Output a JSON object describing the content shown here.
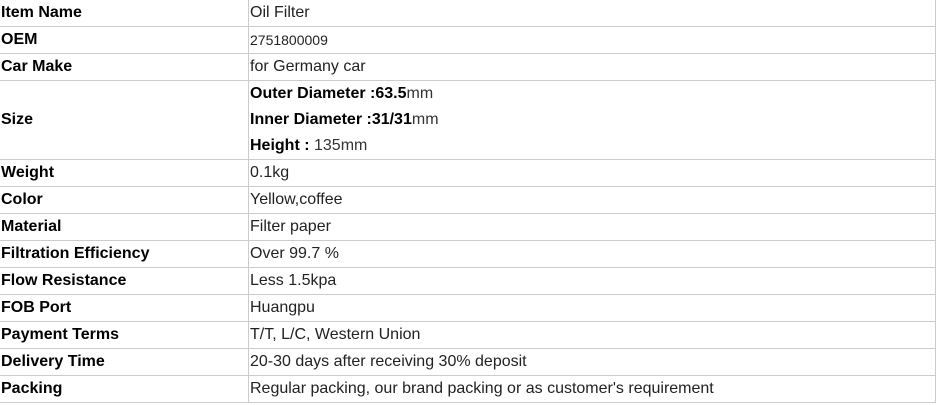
{
  "rows": [
    {
      "label": "Item Name",
      "value": "Oil Filter"
    },
    {
      "label": "OEM",
      "value": "2751800009"
    },
    {
      "label": "Car Make",
      "value": "for Germany car"
    },
    {
      "label": "Size",
      "lines": [
        {
          "bold": "Outer Diameter :63.5",
          "rest": "mm"
        },
        {
          "bold": "Inner Diameter :31/31",
          "rest": "mm"
        },
        {
          "bold": "Height : ",
          "rest": "135mm"
        }
      ]
    },
    {
      "label": "Weight",
      "value": "0.1kg"
    },
    {
      "label": "Color",
      "value": "Yellow,coffee"
    },
    {
      "label": "Material",
      "value": "Filter paper"
    },
    {
      "label": "Filtration Efficiency",
      "value": "Over 99.7 %"
    },
    {
      "label": "Flow Resistance",
      "value": "Less 1.5kpa"
    },
    {
      "label": "FOB Port",
      "value": "Huangpu"
    },
    {
      "label": "Payment Terms",
      "value": "T/T, L/C, Western Union"
    },
    {
      "label": "Delivery Time",
      "value": "20-30 days after receiving 30% deposit"
    },
    {
      "label": "Packing",
      "value": "Regular packing, our brand packing or as customer's requirement"
    }
  ]
}
